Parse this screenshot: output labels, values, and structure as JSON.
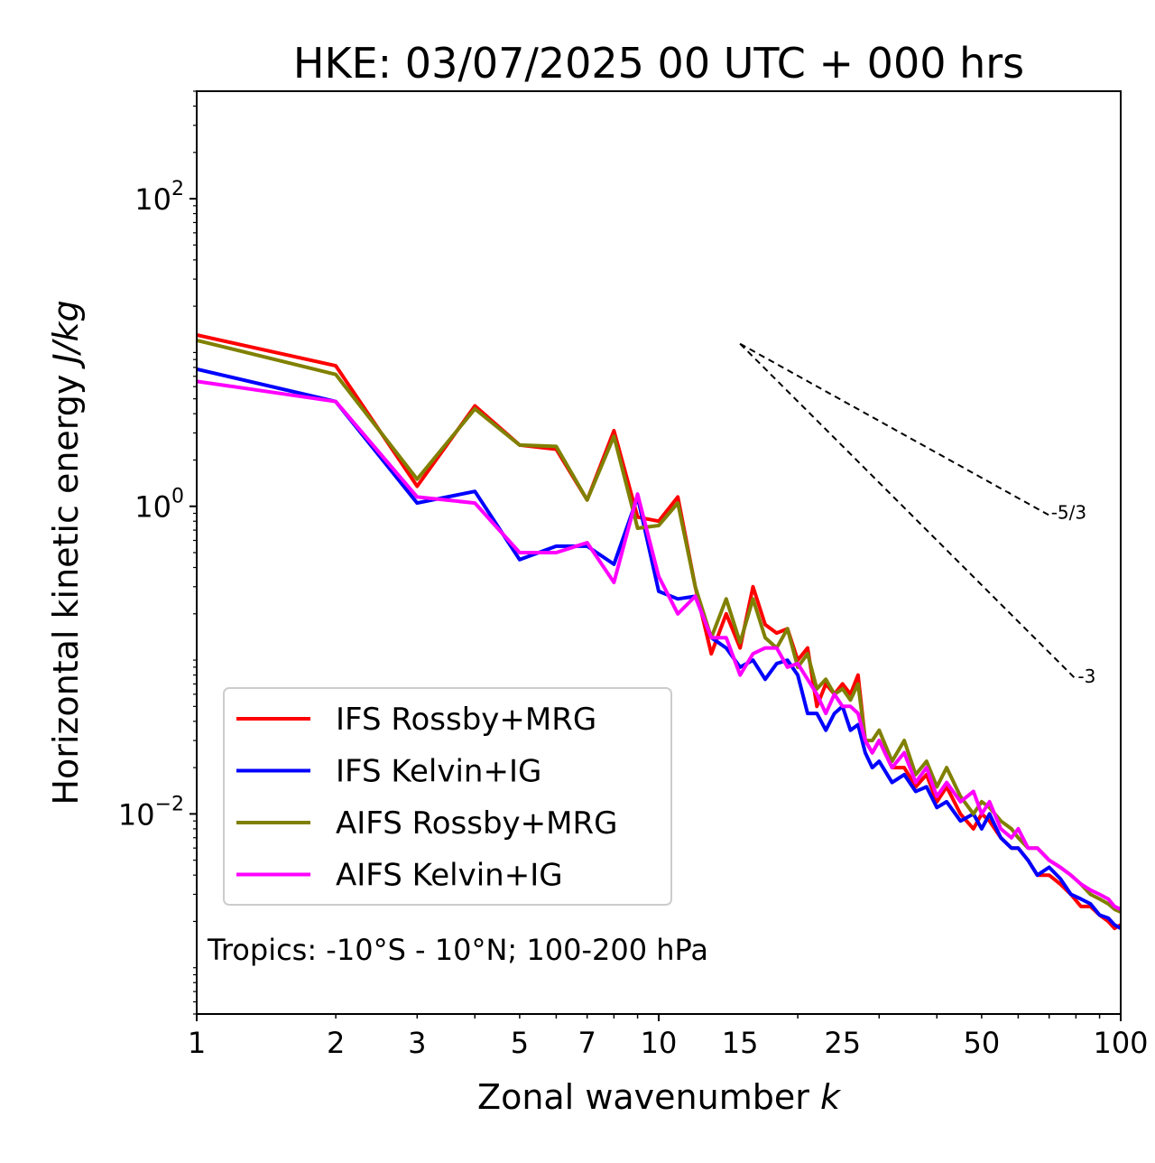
{
  "chart_data": {
    "type": "line",
    "title": "HKE: 03/07/2025 00 UTC + 000 hrs",
    "xlabel": "Zonal wavenumber",
    "xlabel_var": "k",
    "ylabel": "Horizontal kinetic energy",
    "ylabel_unit": "J/kg",
    "xscale": "log",
    "yscale": "log",
    "xlim": [
      1,
      100
    ],
    "ylim": [
      0.0005,
      500
    ],
    "x_ticks": [
      1,
      2,
      3,
      5,
      7,
      10,
      15,
      25,
      50,
      100
    ],
    "x_tick_labels": [
      "1",
      "2",
      "3",
      "5",
      "7",
      "10",
      "15",
      "25",
      "50",
      "100"
    ],
    "y_ticks": [
      0.01,
      1,
      100
    ],
    "y_tick_labels": [
      {
        "base": "10",
        "exp": "−2"
      },
      {
        "base": "10",
        "exp": "0"
      },
      {
        "base": "10",
        "exp": "2"
      }
    ],
    "legend_position": "lower-left",
    "annotation": "Tropics: -10°S - 10°N; 100-200 hPa",
    "reference_slopes": [
      {
        "label": "-5/3",
        "slope": -1.6667,
        "x0": 15,
        "x1": 70,
        "y0": 11.4
      },
      {
        "label": "-3",
        "slope": -3,
        "x0": 15,
        "x1": 80,
        "y0": 11.4
      }
    ],
    "series": [
      {
        "name": "IFS Rossby+MRG",
        "color": "#ff0000",
        "x": [
          1,
          2,
          3,
          4,
          5,
          6,
          7,
          8,
          9,
          10,
          11,
          12,
          13,
          14,
          15,
          16,
          17,
          18,
          19,
          20,
          21,
          22,
          23,
          24,
          25,
          26,
          27,
          28,
          29,
          30,
          32,
          34,
          36,
          38,
          40,
          42,
          45,
          48,
          50,
          52,
          55,
          58,
          60,
          63,
          66,
          70,
          74,
          78,
          82,
          86,
          90,
          94,
          97,
          100
        ],
        "y": [
          13,
          8.2,
          1.35,
          4.5,
          2.5,
          2.35,
          1.1,
          3.1,
          0.85,
          0.8,
          1.15,
          0.3,
          0.11,
          0.2,
          0.12,
          0.3,
          0.17,
          0.15,
          0.16,
          0.1,
          0.12,
          0.05,
          0.07,
          0.06,
          0.07,
          0.06,
          0.08,
          0.03,
          0.025,
          0.03,
          0.02,
          0.02,
          0.015,
          0.018,
          0.012,
          0.015,
          0.01,
          0.008,
          0.01,
          0.009,
          0.007,
          0.006,
          0.006,
          0.005,
          0.004,
          0.004,
          0.0035,
          0.003,
          0.0025,
          0.0025,
          0.0022,
          0.002,
          0.0018,
          0.0019
        ]
      },
      {
        "name": "IFS Kelvin+IG",
        "color": "#0000ff",
        "x": [
          1,
          2,
          3,
          4,
          5,
          6,
          7,
          8,
          9,
          10,
          11,
          12,
          13,
          14,
          15,
          16,
          17,
          18,
          19,
          20,
          21,
          22,
          23,
          24,
          25,
          26,
          27,
          28,
          29,
          30,
          32,
          34,
          36,
          38,
          40,
          42,
          45,
          48,
          50,
          52,
          55,
          58,
          60,
          63,
          66,
          70,
          74,
          78,
          82,
          86,
          90,
          94,
          97,
          100
        ],
        "y": [
          7.8,
          4.8,
          1.05,
          1.25,
          0.45,
          0.55,
          0.55,
          0.42,
          1.15,
          0.28,
          0.25,
          0.26,
          0.14,
          0.12,
          0.09,
          0.1,
          0.075,
          0.095,
          0.1,
          0.08,
          0.045,
          0.045,
          0.035,
          0.045,
          0.05,
          0.035,
          0.038,
          0.025,
          0.02,
          0.022,
          0.016,
          0.018,
          0.014,
          0.015,
          0.011,
          0.012,
          0.009,
          0.01,
          0.008,
          0.01,
          0.007,
          0.006,
          0.006,
          0.005,
          0.004,
          0.0045,
          0.0038,
          0.003,
          0.0028,
          0.0026,
          0.0022,
          0.0021,
          0.0019,
          0.0018
        ]
      },
      {
        "name": "AIFS Rossby+MRG",
        "color": "#808000",
        "x": [
          1,
          2,
          3,
          4,
          5,
          6,
          7,
          8,
          9,
          10,
          11,
          12,
          13,
          14,
          15,
          16,
          17,
          18,
          19,
          20,
          21,
          22,
          23,
          24,
          25,
          26,
          27,
          28,
          29,
          30,
          32,
          34,
          36,
          38,
          40,
          42,
          45,
          48,
          50,
          52,
          55,
          58,
          60,
          63,
          66,
          70,
          74,
          78,
          82,
          86,
          90,
          94,
          97,
          100
        ],
        "y": [
          12,
          7.2,
          1.5,
          4.3,
          2.5,
          2.45,
          1.1,
          2.85,
          0.72,
          0.75,
          1.05,
          0.3,
          0.14,
          0.25,
          0.13,
          0.25,
          0.14,
          0.12,
          0.16,
          0.09,
          0.11,
          0.065,
          0.075,
          0.06,
          0.065,
          0.055,
          0.07,
          0.03,
          0.03,
          0.035,
          0.022,
          0.03,
          0.018,
          0.022,
          0.015,
          0.02,
          0.013,
          0.01,
          0.012,
          0.011,
          0.009,
          0.008,
          0.007,
          0.006,
          0.006,
          0.005,
          0.0045,
          0.004,
          0.0035,
          0.003,
          0.0028,
          0.0026,
          0.0024,
          0.0023
        ]
      },
      {
        "name": "AIFS Kelvin+IG",
        "color": "#ff00ff",
        "x": [
          1,
          2,
          3,
          4,
          5,
          6,
          7,
          8,
          9,
          10,
          11,
          12,
          13,
          14,
          15,
          16,
          17,
          18,
          19,
          20,
          21,
          22,
          23,
          24,
          25,
          26,
          27,
          28,
          29,
          30,
          32,
          34,
          36,
          38,
          40,
          42,
          45,
          48,
          50,
          52,
          55,
          58,
          60,
          63,
          66,
          70,
          74,
          78,
          82,
          86,
          90,
          94,
          97,
          100
        ],
        "y": [
          6.5,
          4.8,
          1.15,
          1.05,
          0.5,
          0.5,
          0.58,
          0.32,
          1.2,
          0.35,
          0.2,
          0.26,
          0.14,
          0.14,
          0.08,
          0.11,
          0.12,
          0.12,
          0.09,
          0.095,
          0.075,
          0.06,
          0.045,
          0.06,
          0.05,
          0.05,
          0.045,
          0.03,
          0.025,
          0.03,
          0.02,
          0.025,
          0.016,
          0.02,
          0.013,
          0.016,
          0.012,
          0.014,
          0.01,
          0.012,
          0.008,
          0.007,
          0.008,
          0.006,
          0.006,
          0.005,
          0.0045,
          0.004,
          0.0035,
          0.0032,
          0.003,
          0.0028,
          0.0025,
          0.0024
        ]
      }
    ]
  }
}
